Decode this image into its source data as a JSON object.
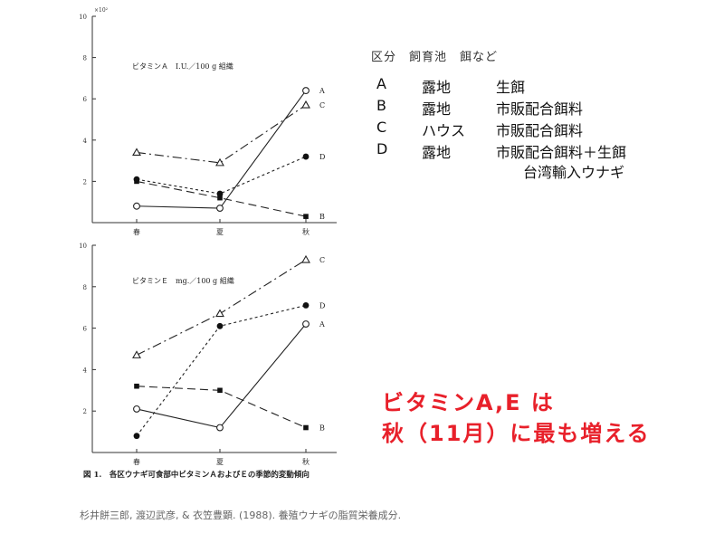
{
  "legend": {
    "header": "区分　飼育池　餌など",
    "rows": [
      {
        "id": "A",
        "pond": "露地",
        "feed": "生餌",
        "extra": ""
      },
      {
        "id": "B",
        "pond": "露地",
        "feed": "市販配合餌料",
        "extra": ""
      },
      {
        "id": "C",
        "pond": "ハウス",
        "feed": "市販配合餌料",
        "extra": ""
      },
      {
        "id": "D",
        "pond": "露地",
        "feed": "市販配合餌料＋生餌",
        "extra": "台湾輸入ウナギ"
      }
    ]
  },
  "callout": {
    "line1": "ビタミンA,E は",
    "line2": "秋（11月）に最も増える"
  },
  "source": "杉井餅三郎, 渡辺武彦, & 衣笠豊顕. (1988). 養殖ウナギの脂質栄養成分.",
  "caption": "図 1.　各区ウナギ可食部中ビタミンＡおよびＥの季節的変動傾向",
  "chart_data": [
    {
      "type": "line",
      "title": "ビタミンＡ　I.U.／100 g 組織",
      "scale_label": "×10²",
      "categories": [
        "春",
        "夏",
        "秋"
      ],
      "yticks": [
        2,
        4,
        6,
        8,
        10
      ],
      "ylim": [
        0,
        10
      ],
      "series": [
        {
          "name": "A",
          "values": [
            0.8,
            0.7,
            6.4
          ],
          "marker": "open-circle",
          "dash": ""
        },
        {
          "name": "B",
          "values": [
            2.0,
            1.2,
            0.3
          ],
          "marker": "square",
          "dash": "9 5"
        },
        {
          "name": "C",
          "values": [
            3.4,
            2.9,
            5.7
          ],
          "marker": "triangle",
          "dash": "10 4 2 4"
        },
        {
          "name": "D",
          "values": [
            2.1,
            1.4,
            3.2
          ],
          "marker": "filled-circle",
          "dash": "3 3"
        }
      ]
    },
    {
      "type": "line",
      "title": "ビタミンＥ　mg.／100 g 組織",
      "scale_label": "",
      "categories": [
        "春",
        "夏",
        "秋"
      ],
      "yticks": [
        2,
        4,
        6,
        8,
        10
      ],
      "ylim": [
        0,
        10
      ],
      "series": [
        {
          "name": "A",
          "values": [
            2.1,
            1.2,
            6.2
          ],
          "marker": "open-circle",
          "dash": ""
        },
        {
          "name": "B",
          "values": [
            3.2,
            3.0,
            1.2
          ],
          "marker": "square",
          "dash": "9 5"
        },
        {
          "name": "C",
          "values": [
            4.7,
            6.7,
            9.3
          ],
          "marker": "triangle",
          "dash": "10 4 2 4"
        },
        {
          "name": "D",
          "values": [
            0.8,
            6.1,
            7.1
          ],
          "marker": "filled-circle",
          "dash": "3 3"
        }
      ]
    }
  ]
}
